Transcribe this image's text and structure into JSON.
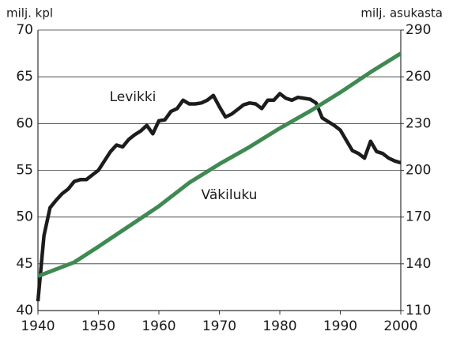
{
  "chart_data": {
    "type": "line",
    "y_label": "milj. kpl",
    "y2_label": "milj. asukasta",
    "xlim": [
      1940,
      2000
    ],
    "xticks": [
      1940,
      1950,
      1960,
      1970,
      1980,
      1990,
      2000
    ],
    "ylim": [
      40,
      70
    ],
    "yticks": [
      40,
      45,
      50,
      55,
      60,
      65,
      70
    ],
    "y2lim": [
      110,
      290
    ],
    "y2ticks": [
      110,
      140,
      170,
      200,
      230,
      260,
      290
    ],
    "grid": true,
    "series": [
      {
        "name": "Levikki",
        "color": "#1c1c1c",
        "x": [
          1940,
          1941,
          1942,
          1943,
          1944,
          1945,
          1946,
          1947,
          1948,
          1949,
          1950,
          1951,
          1952,
          1953,
          1954,
          1955,
          1956,
          1957,
          1958,
          1959,
          1960,
          1961,
          1962,
          1963,
          1964,
          1965,
          1966,
          1967,
          1968,
          1969,
          1970,
          1971,
          1972,
          1973,
          1974,
          1975,
          1976,
          1977,
          1978,
          1979,
          1980,
          1981,
          1982,
          1983,
          1984,
          1985,
          1986,
          1987,
          1988,
          1989,
          1990,
          1991,
          1992,
          1993,
          1994,
          1995,
          1996,
          1997,
          1998,
          1999,
          2000
        ],
        "values": [
          41,
          48,
          51,
          51.8,
          52.5,
          53,
          53.8,
          54,
          54,
          54.5,
          55,
          56,
          57,
          57.7,
          57.5,
          58.3,
          58.8,
          59.2,
          59.8,
          58.9,
          60.3,
          60.4,
          61.3,
          61.6,
          62.5,
          62.1,
          62.1,
          62.2,
          62.5,
          63,
          61.8,
          60.7,
          61,
          61.5,
          62,
          62.2,
          62.1,
          61.6,
          62.5,
          62.5,
          63.2,
          62.7,
          62.5,
          62.8,
          62.7,
          62.6,
          62.2,
          60.6,
          60.2,
          59.8,
          59.3,
          58.2,
          57.1,
          56.8,
          56.3,
          58.1,
          57,
          56.8,
          56.3,
          56,
          55.8
        ]
      },
      {
        "name": "Väkiluku",
        "color": "#3f8a52",
        "axis": "y2",
        "x": [
          1940,
          1946,
          1950,
          1955,
          1960,
          1965,
          1970,
          1975,
          1980,
          1985,
          1990,
          1995,
          2000
        ],
        "values": [
          132,
          141,
          151,
          164,
          177,
          192,
          204,
          215,
          227,
          238,
          250,
          263,
          275
        ]
      }
    ]
  }
}
